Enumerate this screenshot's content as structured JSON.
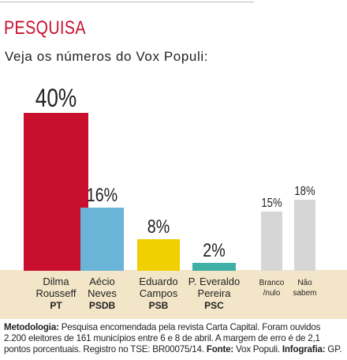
{
  "header": {
    "section_title": "PESQUISA",
    "subtitle": "Veja os números do Vox Populi:"
  },
  "chart_data": {
    "type": "bar",
    "unit": "%",
    "ylim": [
      0,
      40
    ],
    "grid": false,
    "bars": [
      {
        "name": "Dilma Rousseff",
        "name_lines": [
          "Dilma",
          "Rousseff"
        ],
        "party": "PT",
        "value": 40,
        "label": "40%",
        "color": "#c8102e"
      },
      {
        "name": "Aécio Neves",
        "name_lines": [
          "Aécio",
          "Neves"
        ],
        "party": "PSDB",
        "value": 16,
        "label": "16%",
        "color": "#6ab4d8"
      },
      {
        "name": "Eduardo Campos",
        "name_lines": [
          "Eduardo",
          "Campos"
        ],
        "party": "PSB",
        "value": 8,
        "label": "8%",
        "color": "#f0d000"
      },
      {
        "name": "P. Everaldo Pereira",
        "name_lines": [
          "P. Everaldo",
          "Pereira"
        ],
        "party": "PSC",
        "value": 2,
        "label": "2%",
        "color": "#3fb0a6"
      },
      {
        "name": "Branco /nulo",
        "name_lines": [
          "Branco",
          "/nulo"
        ],
        "party": "",
        "value": 15,
        "label": "15%",
        "color": "#d6d6d6",
        "minor": true
      },
      {
        "name": "Não sabem",
        "name_lines": [
          "Não",
          "sabem"
        ],
        "party": "",
        "value": 18,
        "label": "18%",
        "color": "#d6d6d6",
        "minor": true
      }
    ]
  },
  "footer": {
    "methodology_label": "Metodologia:",
    "methodology_text": " Pesquisa encomendada pela revista Carta Capital. Foram ouvidos 2.200 eleitores de 161 municípios entre 6 e 8 de abril. A margem de erro é de 2,1 pontos porcentuais. Registro no TSE: BR00075/14. ",
    "source_label": "Fonte:",
    "source_text": " Vox Populi. ",
    "credit_label": "Infografia:",
    "credit_text": " GP."
  }
}
